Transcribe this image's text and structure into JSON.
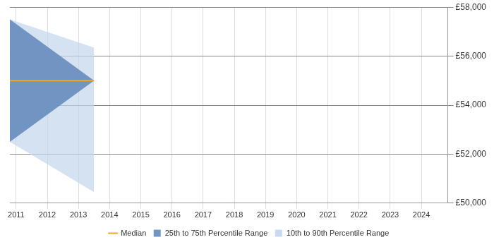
{
  "chart_data": {
    "type": "line",
    "x": [
      2010.8,
      2013.5
    ],
    "series": [
      {
        "name": "Median",
        "type": "line",
        "color": "#f5a623",
        "values": [
          55000,
          55000
        ]
      },
      {
        "name": "25th to 75th Percentile Range",
        "type": "range",
        "color": "#6b8fc0",
        "lower": [
          52500,
          55000
        ],
        "upper": [
          57500,
          55000
        ]
      },
      {
        "name": "10th to 90th Percentile Range",
        "type": "range",
        "color": "#c3d6ec",
        "lower": [
          52500,
          50450
        ],
        "upper": [
          57500,
          56350
        ]
      }
    ],
    "xlim": [
      2010.8,
      2024.85
    ],
    "xticks": [
      2011,
      2012,
      2013,
      2014,
      2015,
      2016,
      2017,
      2018,
      2019,
      2020,
      2021,
      2022,
      2023,
      2024
    ],
    "ylim": [
      50000,
      58000
    ],
    "yticks": [
      {
        "value": 50000,
        "label": "£50,000"
      },
      {
        "value": 52000,
        "label": "£52,000"
      },
      {
        "value": 54000,
        "label": "£54,000"
      },
      {
        "value": 56000,
        "label": "£56,000"
      },
      {
        "value": 58000,
        "label": "£58,000"
      }
    ],
    "grid": true,
    "legend": "bottom"
  }
}
